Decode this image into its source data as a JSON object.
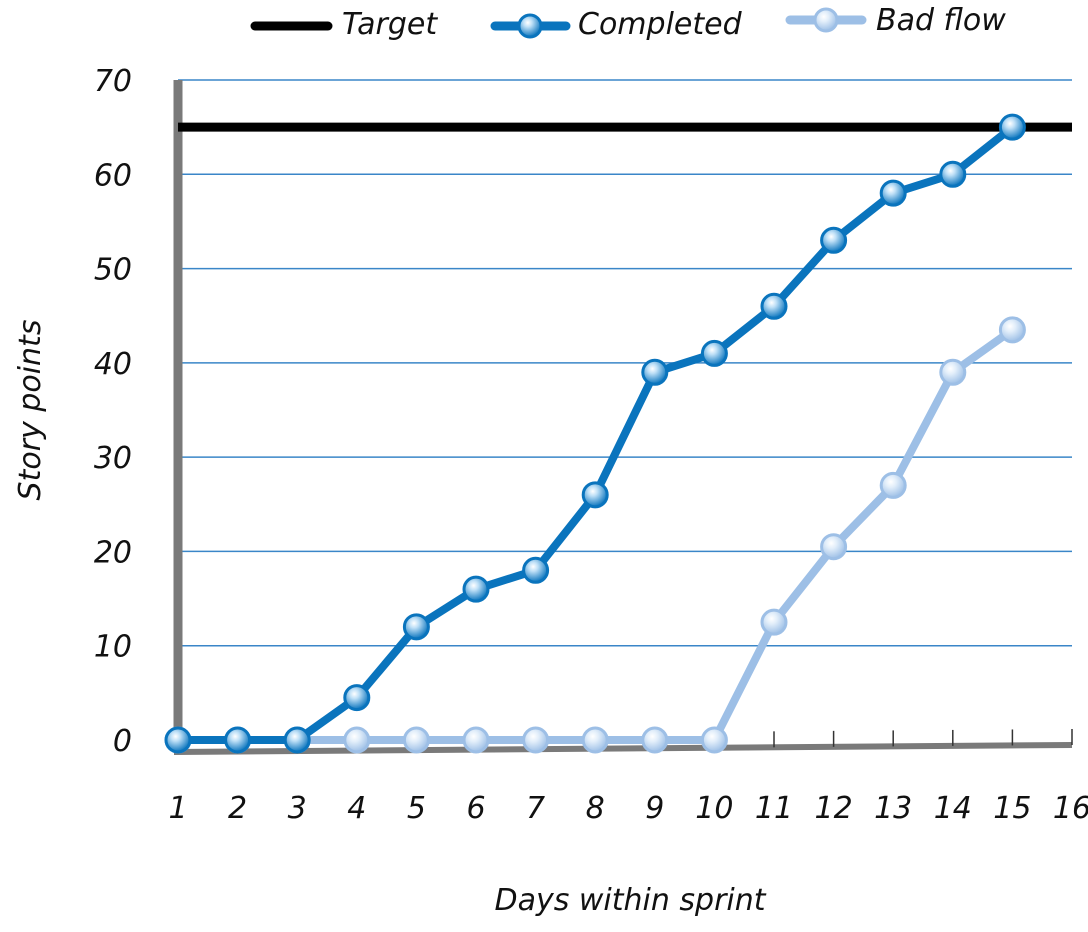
{
  "chart_data": {
    "type": "line",
    "xlabel": "Days within sprint",
    "ylabel": "Story points",
    "x_ticks": [
      1,
      2,
      3,
      4,
      5,
      6,
      7,
      8,
      9,
      10,
      11,
      12,
      13,
      14,
      15,
      16
    ],
    "y_ticks": [
      0,
      10,
      20,
      30,
      40,
      50,
      60,
      70
    ],
    "xlim": [
      1,
      16
    ],
    "ylim": [
      0,
      70
    ],
    "grid": "horizontal",
    "legend": "top",
    "target": {
      "name": "Target",
      "value": 65,
      "color": "#000000"
    },
    "series": [
      {
        "name": "Completed",
        "color": "#0a74bd",
        "x": [
          1,
          2,
          3,
          4,
          5,
          6,
          7,
          8,
          9,
          10,
          11,
          12,
          13,
          14,
          15
        ],
        "values": [
          0,
          0,
          0,
          4.5,
          12,
          16,
          18,
          26,
          39,
          41,
          46,
          53,
          58,
          60,
          65
        ]
      },
      {
        "name": "Bad flow",
        "color": "#9dbfe6",
        "x": [
          1,
          2,
          3,
          4,
          5,
          6,
          7,
          8,
          9,
          10,
          11,
          12,
          13,
          14,
          15
        ],
        "values": [
          0,
          0,
          0,
          0,
          0,
          0,
          0,
          0,
          0,
          0,
          12.5,
          20.5,
          27,
          39,
          43.5
        ]
      }
    ]
  }
}
